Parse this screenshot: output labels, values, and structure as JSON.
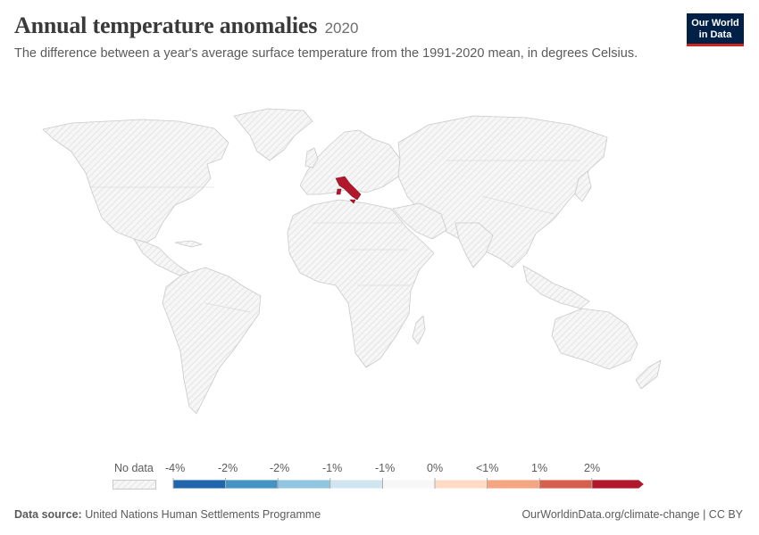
{
  "header": {
    "title": "Annual temperature anomalies",
    "year": "2020",
    "subtitle": "The difference between a year's average surface temperature from the 1991-2020 mean, in degrees Celsius."
  },
  "logo": {
    "line1": "Our World",
    "line2": "in Data"
  },
  "map": {
    "highlighted_country": "Italy",
    "highlight_color": "#b2182b",
    "land_color": "#f2f2f2",
    "border_color": "#c8c8c8",
    "hatch_color": "#d6d6d6"
  },
  "legend": {
    "no_data_label": "No data",
    "bin_labels": [
      "-4%",
      "-2%",
      "-2%",
      "-1%",
      "-1%",
      "0%",
      "<1%",
      "1%",
      "2%"
    ],
    "bin_colors": [
      "#2166ac",
      "#4393c3",
      "#92c5de",
      "#d1e5f0",
      "#f7f7f7",
      "#fddbc7",
      "#f4a582",
      "#d6604d",
      "#b2182b"
    ]
  },
  "footer": {
    "source_label": "Data source:",
    "source_value": "United Nations Human Settlements Programme",
    "url": "OurWorldinData.org/climate-change | CC BY"
  }
}
